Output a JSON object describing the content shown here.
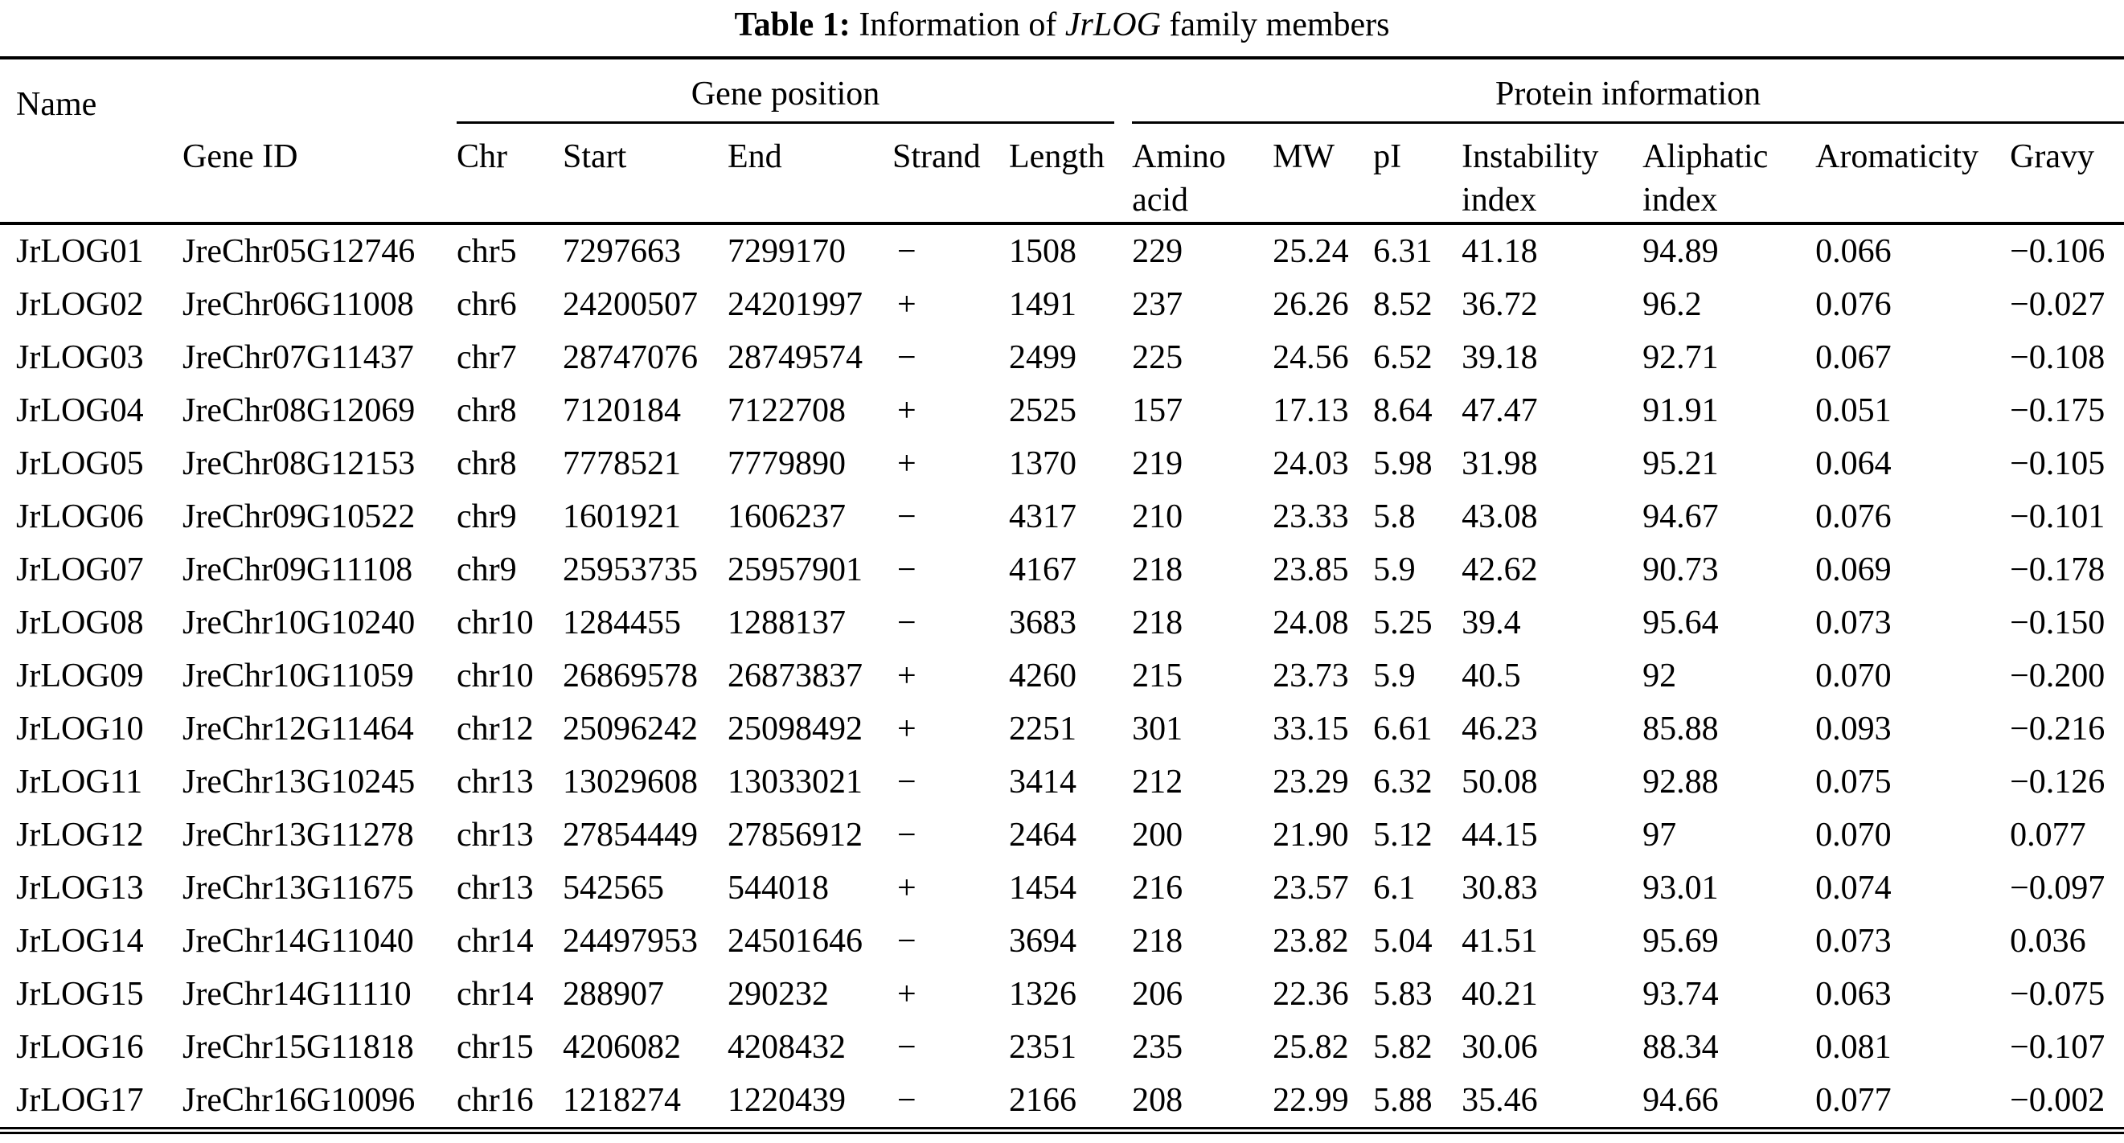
{
  "title": {
    "label": "Table 1:",
    "text_before_italic": " Information of ",
    "italic_term": "JrLOG",
    "text_after_italic": " family members"
  },
  "table": {
    "corner_header": "Name",
    "group_headers": {
      "gene_position": "Gene position",
      "protein_information": "Protein information"
    },
    "sub_headers": [
      "Gene ID",
      "Chr",
      "Start",
      "End",
      "Strand",
      "Length",
      "Amino acid",
      "MW",
      "pI",
      "Instability index",
      "Aliphatic index",
      "Aromaticity",
      "Gravy"
    ],
    "field_names": [
      "name",
      "gene_id",
      "chr",
      "start",
      "end",
      "strand",
      "length",
      "amino_acid",
      "mw",
      "pi",
      "instability_index",
      "aliphatic_index",
      "aromaticity",
      "gravy"
    ],
    "rows": [
      [
        "JrLOG01",
        "JreChr05G12746",
        "chr5",
        "7297663",
        "7299170",
        "−",
        "1508",
        "229",
        "25.24",
        "6.31",
        "41.18",
        "94.89",
        "0.066",
        "−0.106"
      ],
      [
        "JrLOG02",
        "JreChr06G11008",
        "chr6",
        "24200507",
        "24201997",
        "+",
        "1491",
        "237",
        "26.26",
        "8.52",
        "36.72",
        "96.2",
        "0.076",
        "−0.027"
      ],
      [
        "JrLOG03",
        "JreChr07G11437",
        "chr7",
        "28747076",
        "28749574",
        "−",
        "2499",
        "225",
        "24.56",
        "6.52",
        "39.18",
        "92.71",
        "0.067",
        "−0.108"
      ],
      [
        "JrLOG04",
        "JreChr08G12069",
        "chr8",
        "7120184",
        "7122708",
        "+",
        "2525",
        "157",
        "17.13",
        "8.64",
        "47.47",
        "91.91",
        "0.051",
        "−0.175"
      ],
      [
        "JrLOG05",
        "JreChr08G12153",
        "chr8",
        "7778521",
        "7779890",
        "+",
        "1370",
        "219",
        "24.03",
        "5.98",
        "31.98",
        "95.21",
        "0.064",
        "−0.105"
      ],
      [
        "JrLOG06",
        "JreChr09G10522",
        "chr9",
        "1601921",
        "1606237",
        "−",
        "4317",
        "210",
        "23.33",
        "5.8",
        "43.08",
        "94.67",
        "0.076",
        "−0.101"
      ],
      [
        "JrLOG07",
        "JreChr09G11108",
        "chr9",
        "25953735",
        "25957901",
        "−",
        "4167",
        "218",
        "23.85",
        "5.9",
        "42.62",
        "90.73",
        "0.069",
        "−0.178"
      ],
      [
        "JrLOG08",
        "JreChr10G10240",
        "chr10",
        "1284455",
        "1288137",
        "−",
        "3683",
        "218",
        "24.08",
        "5.25",
        "39.4",
        "95.64",
        "0.073",
        "−0.150"
      ],
      [
        "JrLOG09",
        "JreChr10G11059",
        "chr10",
        "26869578",
        "26873837",
        "+",
        "4260",
        "215",
        "23.73",
        "5.9",
        "40.5",
        "92",
        "0.070",
        "−0.200"
      ],
      [
        "JrLOG10",
        "JreChr12G11464",
        "chr12",
        "25096242",
        "25098492",
        "+",
        "2251",
        "301",
        "33.15",
        "6.61",
        "46.23",
        "85.88",
        "0.093",
        "−0.216"
      ],
      [
        "JrLOG11",
        "JreChr13G10245",
        "chr13",
        "13029608",
        "13033021",
        "−",
        "3414",
        "212",
        "23.29",
        "6.32",
        "50.08",
        "92.88",
        "0.075",
        "−0.126"
      ],
      [
        "JrLOG12",
        "JreChr13G11278",
        "chr13",
        "27854449",
        "27856912",
        "−",
        "2464",
        "200",
        "21.90",
        "5.12",
        "44.15",
        "97",
        "0.070",
        "0.077"
      ],
      [
        "JrLOG13",
        "JreChr13G11675",
        "chr13",
        "542565",
        "544018",
        "+",
        "1454",
        "216",
        "23.57",
        "6.1",
        "30.83",
        "93.01",
        "0.074",
        "−0.097"
      ],
      [
        "JrLOG14",
        "JreChr14G11040",
        "chr14",
        "24497953",
        "24501646",
        "−",
        "3694",
        "218",
        "23.82",
        "5.04",
        "41.51",
        "95.69",
        "0.073",
        "0.036"
      ],
      [
        "JrLOG15",
        "JreChr14G11110",
        "chr14",
        "288907",
        "290232",
        "+",
        "1326",
        "206",
        "22.36",
        "5.83",
        "40.21",
        "93.74",
        "0.063",
        "−0.075"
      ],
      [
        "JrLOG16",
        "JreChr15G11818",
        "chr15",
        "4206082",
        "4208432",
        "−",
        "2351",
        "235",
        "25.82",
        "5.82",
        "30.06",
        "88.34",
        "0.081",
        "−0.107"
      ],
      [
        "JrLOG17",
        "JreChr16G10096",
        "chr16",
        "1218274",
        "1220439",
        "−",
        "2166",
        "208",
        "22.99",
        "5.88",
        "35.46",
        "94.66",
        "0.077",
        "−0.002"
      ]
    ]
  }
}
